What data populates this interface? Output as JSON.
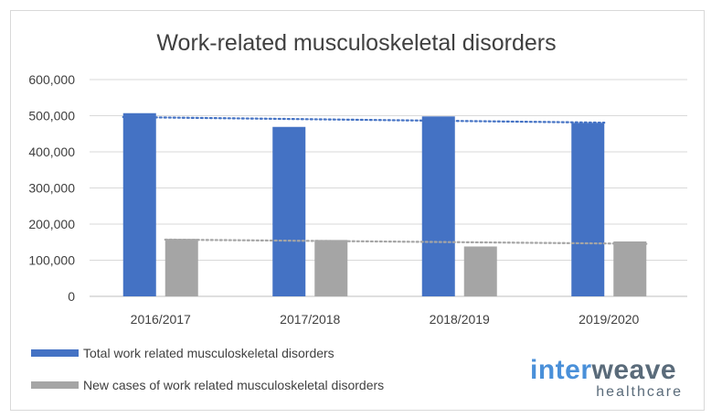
{
  "chart_data": {
    "type": "bar",
    "title": "Work-related musculoskeletal disorders",
    "categories": [
      "2016/2017",
      "2017/2018",
      "2018/2019",
      "2019/2020"
    ],
    "series": [
      {
        "name": "Total work related musculoskeletal disorders",
        "values": [
          507000,
          469000,
          498000,
          480000
        ],
        "color": "#4472c4"
      },
      {
        "name": "New cases of work related musculoskeletal disorders",
        "values": [
          159000,
          156000,
          138000,
          152000
        ],
        "color": "#a5a5a5"
      }
    ],
    "trendlines": [
      {
        "series": "Total work related musculoskeletal disorders",
        "type": "linear",
        "style": "dotted",
        "color": "#4472c4"
      },
      {
        "series": "New cases of work related musculoskeletal disorders",
        "type": "linear",
        "style": "dotted",
        "color": "#a5a5a5"
      }
    ],
    "yticks": [
      "0",
      "100,000",
      "200,000",
      "300,000",
      "400,000",
      "500,000",
      "600,000"
    ],
    "ylim": [
      0,
      600000
    ],
    "grid": true,
    "legend_position": "bottom-left"
  },
  "branding": {
    "logo_part1": "inter",
    "logo_part2": "weave",
    "logo_sub": "healthcare",
    "color1": "#4a90d9",
    "color2": "#5a6b7a"
  }
}
